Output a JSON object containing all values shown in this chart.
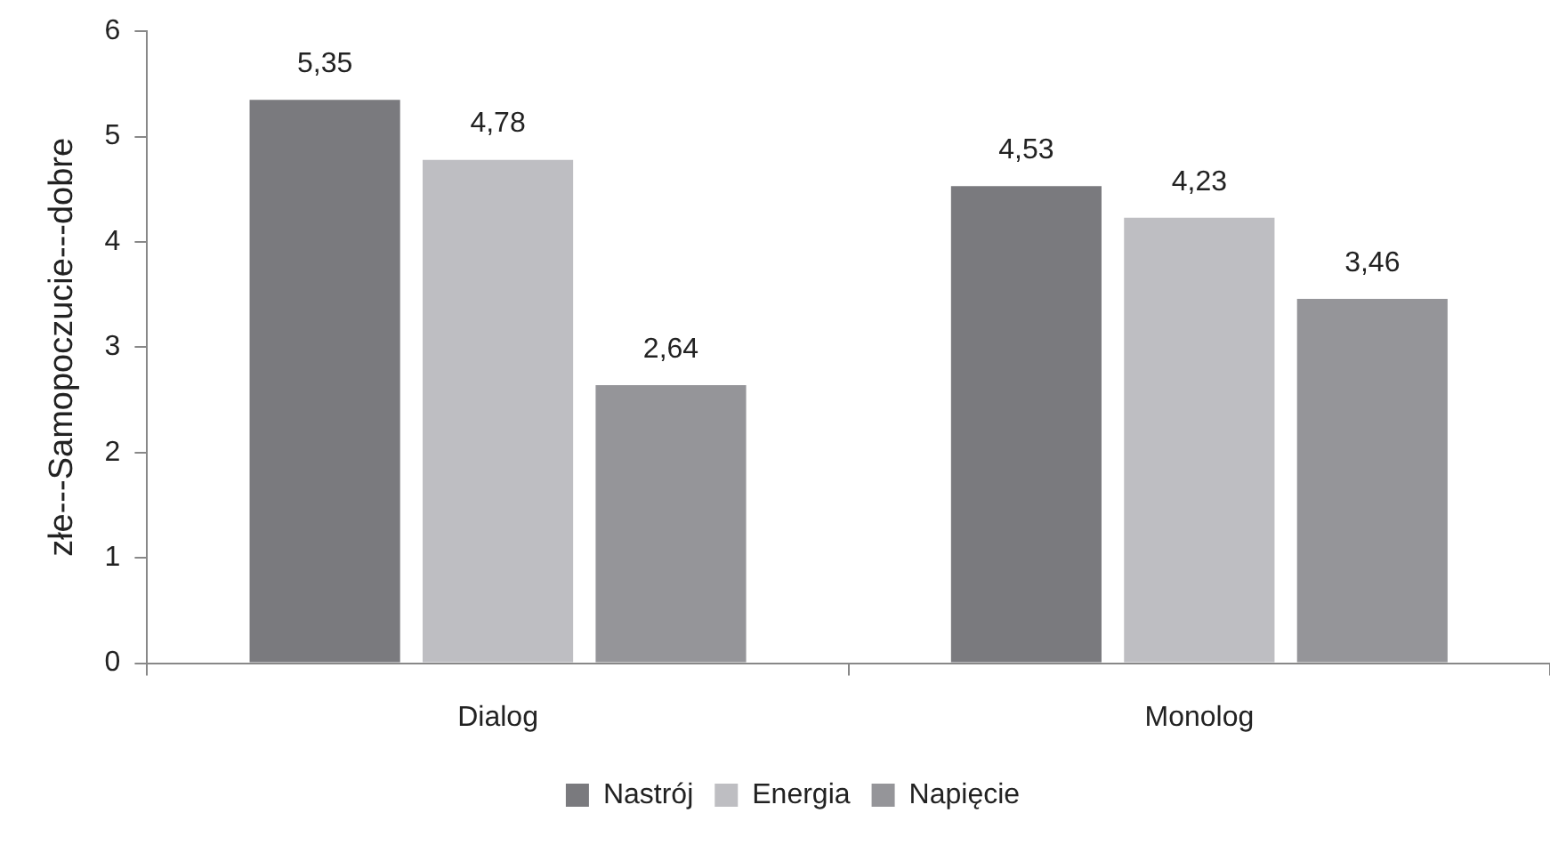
{
  "chart_data": {
    "type": "bar",
    "ylabel": "złe---Samopoczucie---dobre",
    "categories": [
      "Dialog",
      "Monolog"
    ],
    "series": [
      {
        "name": "Nastrój",
        "color": "#7a7a7e",
        "values": [
          5.35,
          4.53
        ],
        "value_labels": [
          "5,35",
          "4,53"
        ]
      },
      {
        "name": "Energia",
        "color": "#bebec2",
        "values": [
          4.78,
          4.23
        ],
        "value_labels": [
          "4,78",
          "4,23"
        ]
      },
      {
        "name": "Napięcie",
        "color": "#959599",
        "values": [
          2.64,
          3.46
        ],
        "value_labels": [
          "2,64",
          "3,46"
        ]
      }
    ],
    "ylim": [
      0,
      6
    ],
    "yticks": [
      0,
      1,
      2,
      3,
      4,
      5,
      6
    ],
    "grid": false,
    "legend": "bottom"
  }
}
